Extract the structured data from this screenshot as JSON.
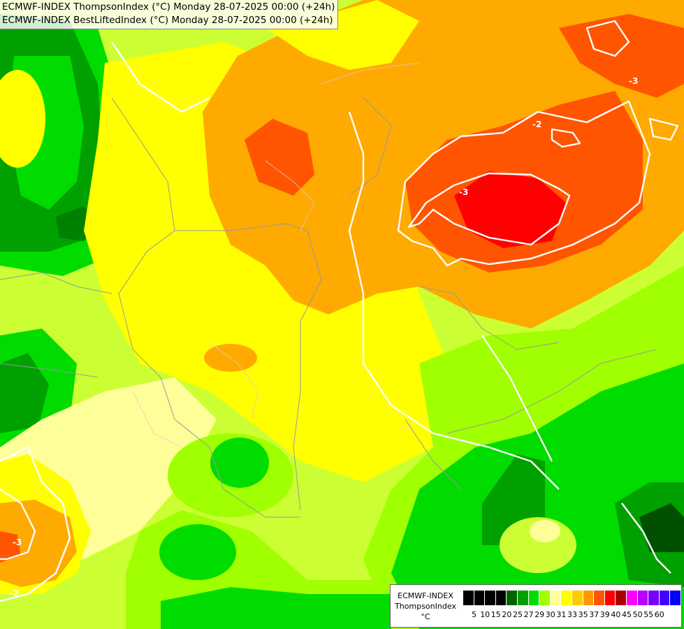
{
  "header": {
    "line1": "ECMWF-INDEX ThompsonIndex (°C) Monday 28-07-2025 00:00 (+24h)",
    "line2": "ECMWF-INDEX BestLiftedIndex (°C) Monday 28-07-2025 00:00 (+24h)"
  },
  "legend": {
    "title_lines": [
      "ECMWF-INDEX",
      "ThompsonIndex",
      "°C"
    ],
    "colors": [
      "#000000",
      "#000000",
      "#000000",
      "#000000",
      "#006400",
      "#00a000",
      "#00dc00",
      "#a0ff00",
      "#ffff99",
      "#ffff00",
      "#ffcc00",
      "#ff9900",
      "#ff5500",
      "#ff0000",
      "#aa0000",
      "#ff00ff",
      "#bb00ff",
      "#7700ff",
      "#4400ff",
      "#0000ff"
    ],
    "ticks": [
      "5",
      "10",
      "15",
      "20",
      "25",
      "27",
      "29",
      "30",
      "31",
      "33",
      "35",
      "37",
      "39",
      "40",
      "45",
      "50",
      "55",
      "60"
    ]
  },
  "contour_labels": [
    "-2",
    "-3",
    "-3",
    "-2",
    "-3"
  ],
  "colors": {
    "green_dark": "#006400",
    "green_mid": "#00a000",
    "green": "#00dc00",
    "lime": "#a0ff00",
    "pale_yellow": "#ffff99",
    "yellow": "#ffff00",
    "orange_light": "#ffcc00",
    "orange": "#ff9900",
    "orange_red": "#ff5500",
    "red": "#ff0000",
    "contour_white": "#ffffff",
    "border": "#999999"
  }
}
